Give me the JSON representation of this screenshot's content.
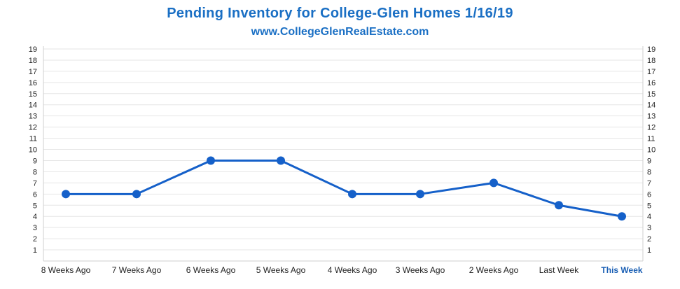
{
  "chart_data": {
    "type": "line",
    "title": "Pending Inventory for College-Glen Homes 1/16/19",
    "subtitle": "www.CollegeGlenRealEstate.com",
    "categories": [
      "8 Weeks Ago",
      "7 Weeks Ago",
      "6 Weeks Ago",
      "5 Weeks Ago",
      "4 Weeks Ago",
      "3 Weeks Ago",
      "2 Weeks Ago",
      "Last Week",
      "This Week"
    ],
    "highlight_category": "This Week",
    "series": [
      {
        "values": [
          6,
          6,
          9,
          9,
          6,
          6,
          7,
          5,
          4
        ]
      }
    ],
    "yticks": [
      1,
      2,
      3,
      4,
      5,
      6,
      7,
      8,
      9,
      10,
      11,
      12,
      13,
      14,
      15,
      16,
      17,
      18,
      19
    ],
    "ylim": [
      0,
      19
    ],
    "grid": true,
    "colors": {
      "line": "#1560c9",
      "title": "#1a6fc4",
      "grid": "#e6e6e6",
      "highlight": "#1a5fb4"
    }
  }
}
